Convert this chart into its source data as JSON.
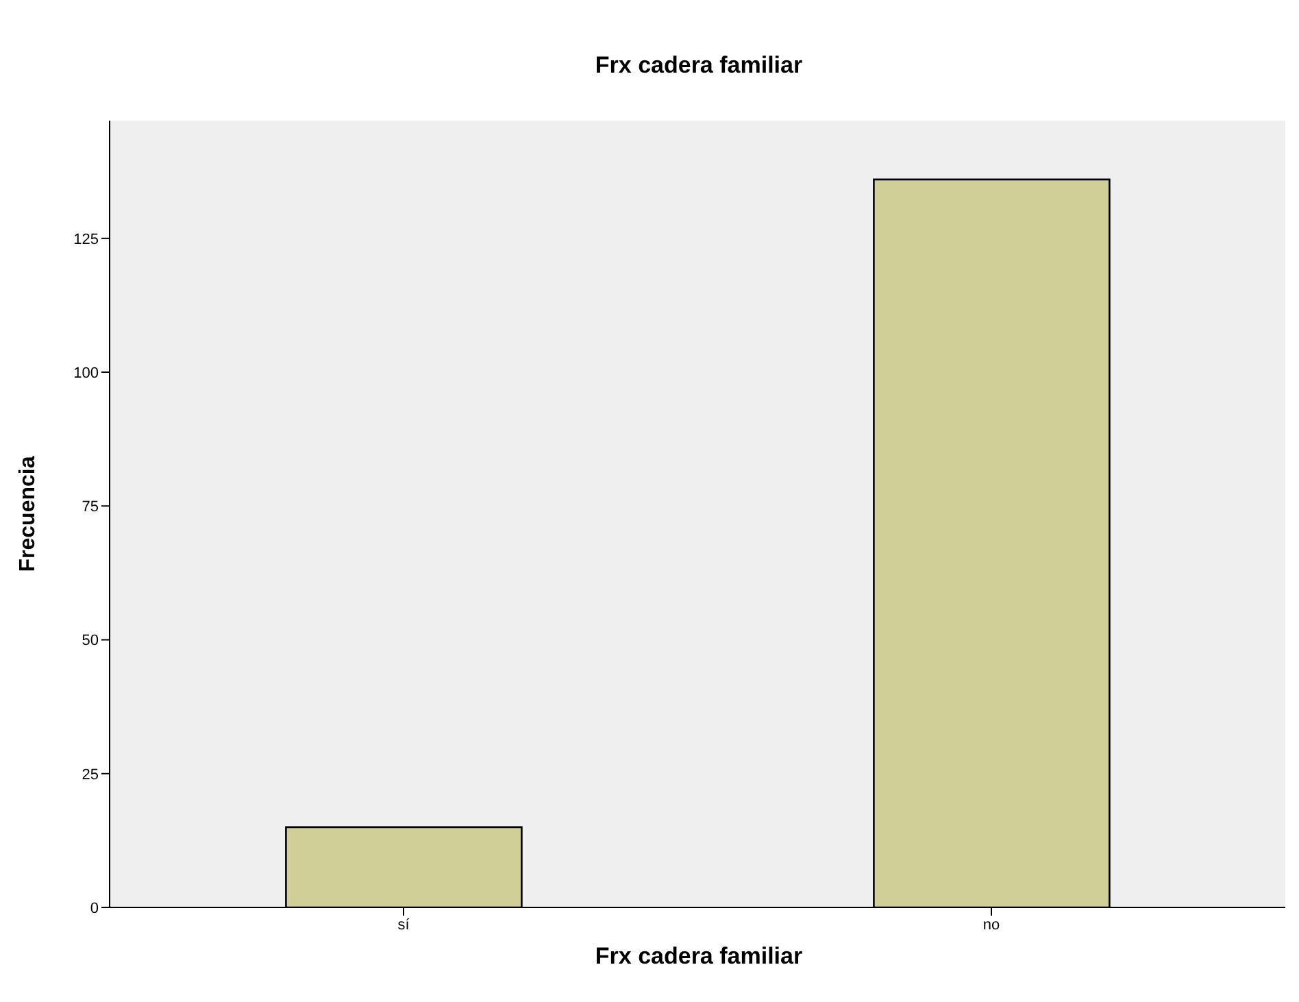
{
  "chart_data": {
    "type": "bar",
    "title": "Frx cadera familiar",
    "xlabel": "Frx cadera familiar",
    "ylabel": "Frecuencia",
    "categories": [
      "sí",
      "no"
    ],
    "values": [
      15,
      136
    ],
    "color": "#d0cf98",
    "ylim": [
      0,
      147
    ],
    "yticks": [
      0,
      25,
      50,
      75,
      100,
      125
    ],
    "grid": false
  }
}
